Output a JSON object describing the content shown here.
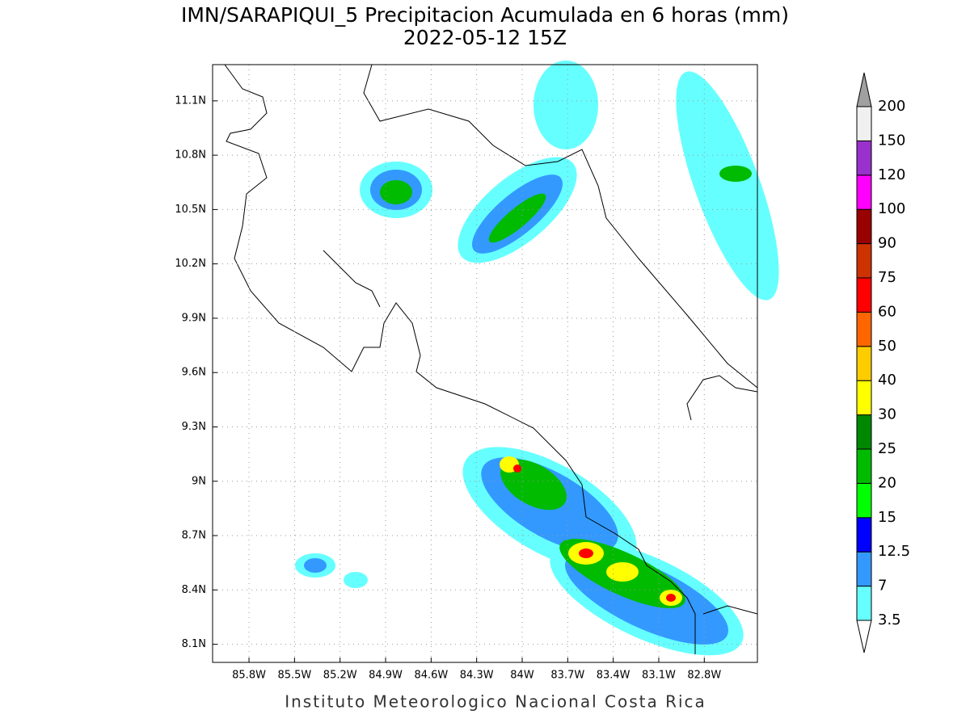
{
  "header": {
    "title": "IMN/SARAPIQUI_5 Precipitacion Acumulada en 6 horas (mm)",
    "subtitle": "2022-05-12 15Z"
  },
  "map": {
    "lonlim": [
      -86.04,
      -82.45
    ],
    "latlim": [
      8.0,
      11.3
    ],
    "lonticks": [
      {
        "value": -85.8,
        "label": "85.8W"
      },
      {
        "value": -85.5,
        "label": "85.5W"
      },
      {
        "value": -85.2,
        "label": "85.2W"
      },
      {
        "value": -84.9,
        "label": "84.9W"
      },
      {
        "value": -84.6,
        "label": "84.6W"
      },
      {
        "value": -84.3,
        "label": "84.3W"
      },
      {
        "value": -84.0,
        "label": "84W"
      },
      {
        "value": -83.7,
        "label": "83.7W"
      },
      {
        "value": -83.4,
        "label": "83.4W"
      },
      {
        "value": -83.1,
        "label": "83.1W"
      },
      {
        "value": -82.8,
        "label": "82.8W"
      }
    ],
    "latticks": [
      {
        "value": 8.1,
        "label": "8.1N"
      },
      {
        "value": 8.4,
        "label": "8.4N"
      },
      {
        "value": 8.7,
        "label": "8.7N"
      },
      {
        "value": 9.0,
        "label": "9N"
      },
      {
        "value": 9.3,
        "label": "9.3N"
      },
      {
        "value": 9.6,
        "label": "9.6N"
      },
      {
        "value": 9.9,
        "label": "9.9N"
      },
      {
        "value": 10.2,
        "label": "10.2N"
      },
      {
        "value": 10.5,
        "label": "10.5N"
      },
      {
        "value": 10.8,
        "label": "10.8N"
      },
      {
        "value": 11.1,
        "label": "11.1N"
      }
    ],
    "grid": true
  },
  "colorbar": {
    "levels": [
      3.5,
      7,
      12.5,
      15,
      20,
      25,
      30,
      40,
      50,
      60,
      75,
      90,
      100,
      120,
      150,
      200
    ],
    "colors": [
      "#ffffff",
      "#66ffff",
      "#3399ff",
      "#0000ff",
      "#00ff00",
      "#00bb00",
      "#008800",
      "#ffff00",
      "#ffcc00",
      "#ff6600",
      "#ff0000",
      "#cc3300",
      "#990000",
      "#ff00ff",
      "#9932cc",
      "#f0f0f0",
      "#a0a0a0"
    ]
  },
  "footer": "Instituto Meteorologico Nacional Costa Rica"
}
